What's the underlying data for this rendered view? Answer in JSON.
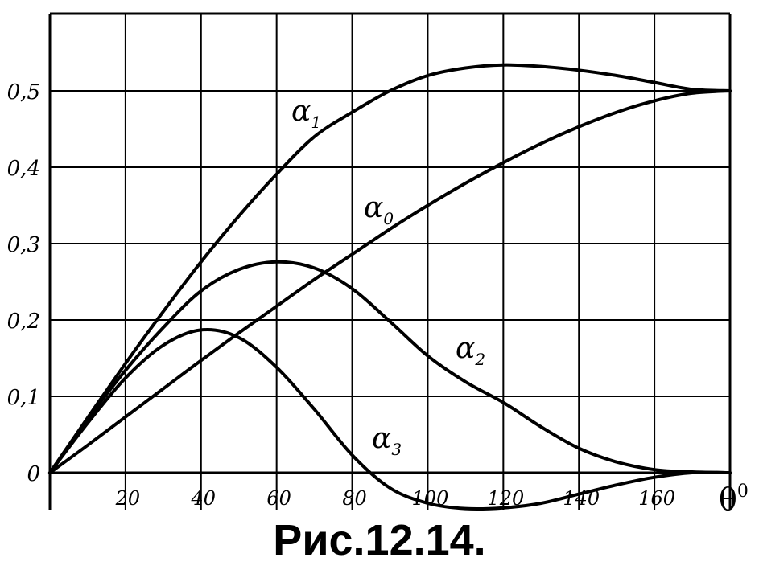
{
  "chart_data": {
    "type": "line",
    "xlabel": "θ",
    "xlabel_sup": "0",
    "ylabel": "",
    "xlim": [
      0,
      180
    ],
    "ylim": [
      -0.05,
      0.6
    ],
    "x_ticks": [
      20,
      40,
      60,
      80,
      100,
      120,
      140,
      160
    ],
    "x_tick_labels": [
      "20",
      "40",
      "60",
      "80",
      "100",
      "120",
      "140",
      "160"
    ],
    "y_ticks": [
      0,
      0.1,
      0.2,
      0.3,
      0.4,
      0.5
    ],
    "y_tick_labels": [
      "0",
      "0,1",
      "0,2",
      "0,3",
      "0,4",
      "0,5"
    ],
    "grid": true,
    "series": [
      {
        "name": "α",
        "sub": "0",
        "x": [
          0,
          10,
          20,
          30,
          40,
          50,
          60,
          70,
          80,
          90,
          100,
          110,
          120,
          130,
          140,
          150,
          160,
          170,
          180
        ],
        "y": [
          0,
          0.036,
          0.073,
          0.11,
          0.147,
          0.183,
          0.218,
          0.253,
          0.286,
          0.319,
          0.35,
          0.379,
          0.406,
          0.431,
          0.453,
          0.472,
          0.487,
          0.497,
          0.5
        ]
      },
      {
        "name": "α",
        "sub": "1",
        "x": [
          0,
          10,
          20,
          30,
          40,
          50,
          60,
          70,
          80,
          90,
          100,
          110,
          120,
          130,
          140,
          150,
          160,
          170,
          180
        ],
        "y": [
          0,
          0.072,
          0.143,
          0.211,
          0.276,
          0.336,
          0.391,
          0.44,
          0.472,
          0.5,
          0.52,
          0.53,
          0.534,
          0.532,
          0.527,
          0.52,
          0.511,
          0.502,
          0.5
        ]
      },
      {
        "name": "α",
        "sub": "2",
        "x": [
          0,
          10,
          20,
          30,
          40,
          50,
          60,
          70,
          80,
          90,
          100,
          110,
          120,
          130,
          140,
          150,
          160,
          170,
          180
        ],
        "y": [
          0,
          0.07,
          0.134,
          0.19,
          0.238,
          0.266,
          0.276,
          0.268,
          0.241,
          0.198,
          0.153,
          0.119,
          0.092,
          0.06,
          0.032,
          0.014,
          0.004,
          0.001,
          0
        ]
      },
      {
        "name": "α",
        "sub": "3",
        "x": [
          0,
          10,
          20,
          30,
          40,
          50,
          60,
          70,
          80,
          90,
          100,
          110,
          120,
          130,
          140,
          150,
          160,
          170,
          180
        ],
        "y": [
          0,
          0.065,
          0.124,
          0.167,
          0.187,
          0.177,
          0.138,
          0.083,
          0.023,
          -0.02,
          -0.04,
          -0.047,
          -0.046,
          -0.04,
          -0.028,
          -0.016,
          -0.006,
          0,
          0
        ]
      }
    ],
    "caption": "Рис.12.14."
  }
}
